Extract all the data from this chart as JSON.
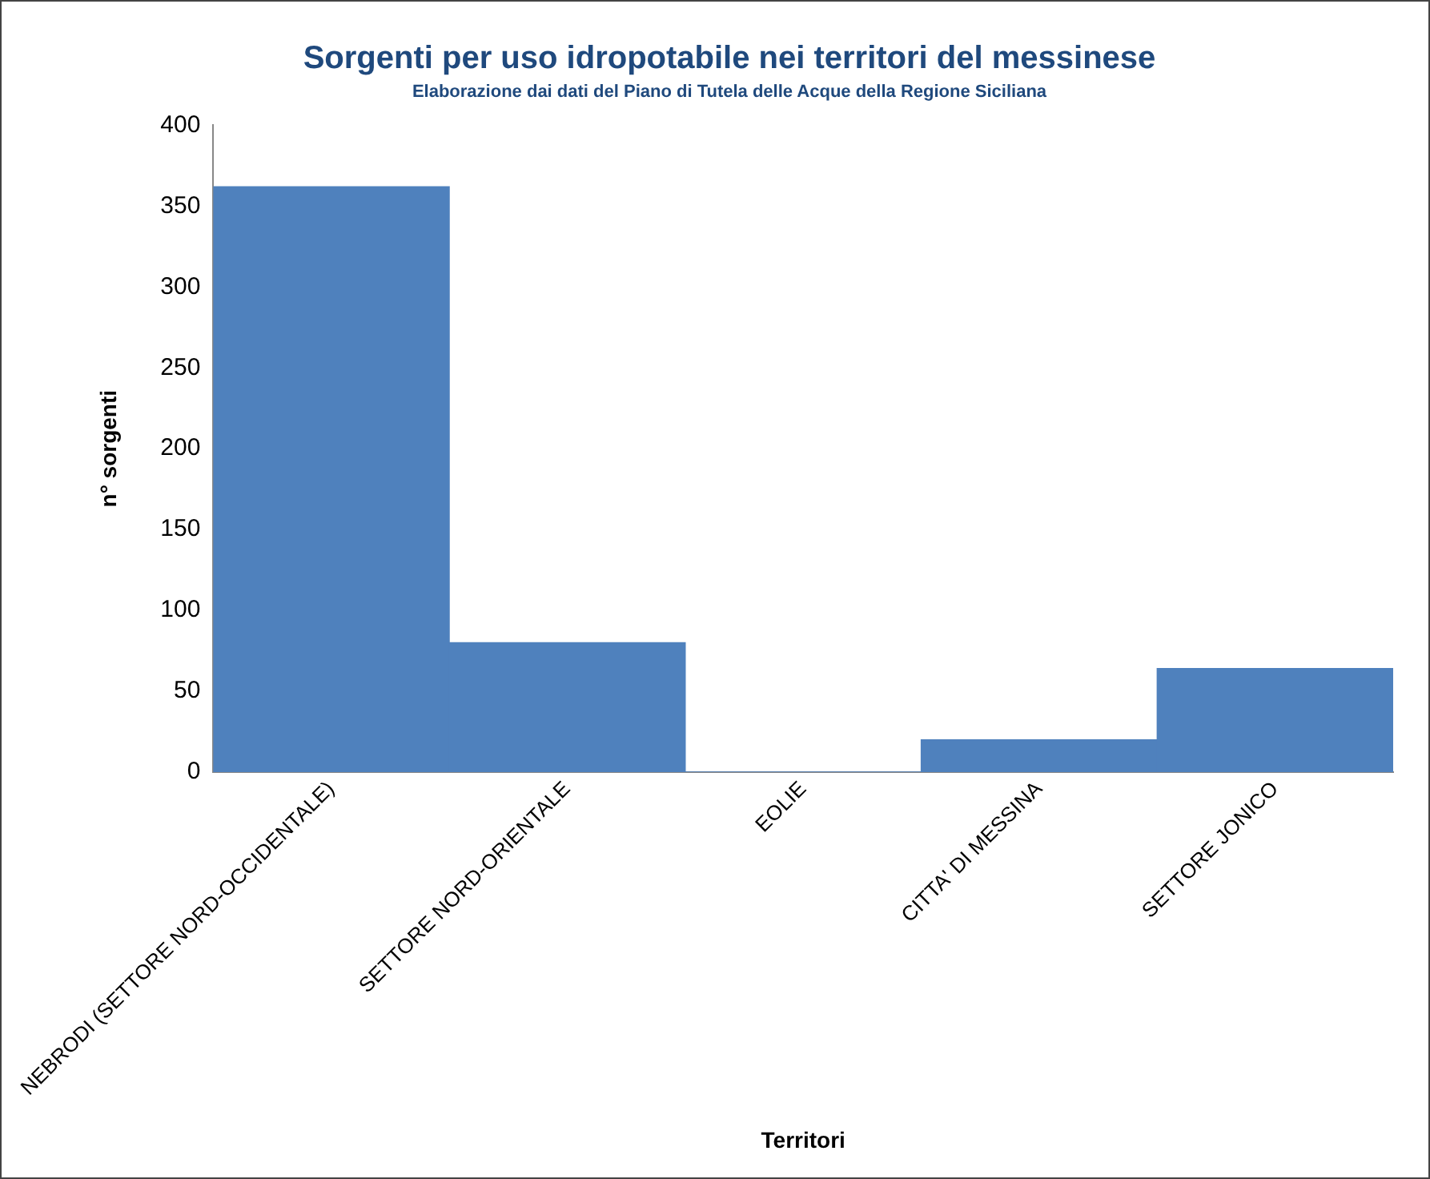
{
  "chart_data": {
    "type": "bar",
    "title": "Sorgenti per uso idropotabile nei territori del messinese",
    "subtitle": "Elaborazione dai dati del Piano di Tutela delle Acque della Regione Siciliana",
    "xlabel": "Territori",
    "ylabel": "n° sorgenti",
    "categories": [
      "NEBRODI (SETTORE NORD-OCCIDENTALE)",
      "SETTORE NORD-ORIENTALE",
      "EOLIE",
      "CITTA' DI MESSINA",
      "SETTORE JONICO"
    ],
    "values": [
      362,
      80,
      0,
      20,
      64
    ],
    "color": "#4f81bd",
    "ylim": [
      0,
      400
    ],
    "yticks": [
      0,
      50,
      100,
      150,
      200,
      250,
      300,
      350,
      400
    ],
    "grid": false,
    "legend": false
  }
}
